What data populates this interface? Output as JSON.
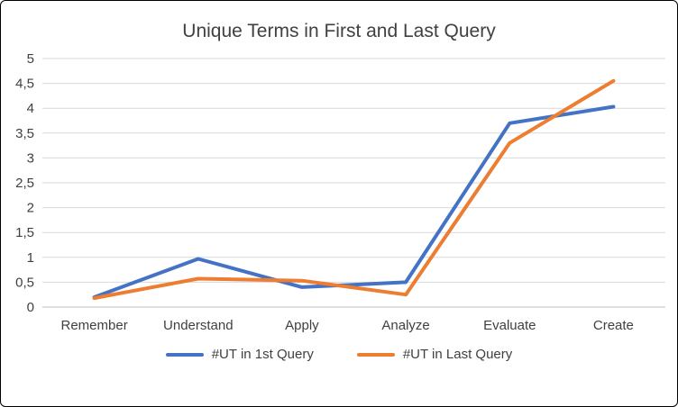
{
  "chart_data": {
    "type": "line",
    "title": "Unique Terms in First and Last Query",
    "categories": [
      "Remember",
      "Understand",
      "Apply",
      "Analyze",
      "Evaluate",
      "Create"
    ],
    "series": [
      {
        "name": "#UT in 1st Query",
        "color": "#4472C4",
        "values": [
          0.2,
          0.97,
          0.4,
          0.5,
          3.7,
          4.03
        ]
      },
      {
        "name": "#UT in Last Query",
        "color": "#ED7D31",
        "values": [
          0.18,
          0.57,
          0.53,
          0.25,
          3.3,
          4.55
        ]
      }
    ],
    "xlabel": "",
    "ylabel": "",
    "ylim": [
      0,
      5
    ],
    "ytick_step": 0.5,
    "ytick_labels": [
      "0",
      "0,5",
      "1",
      "1,5",
      "2",
      "2,5",
      "3",
      "3,5",
      "4",
      "4,5",
      "5"
    ],
    "grid": true,
    "legend_position": "bottom",
    "colors": {
      "grid": "#D9D9D9",
      "axis": "#BFBFBF",
      "text": "#404040"
    }
  }
}
